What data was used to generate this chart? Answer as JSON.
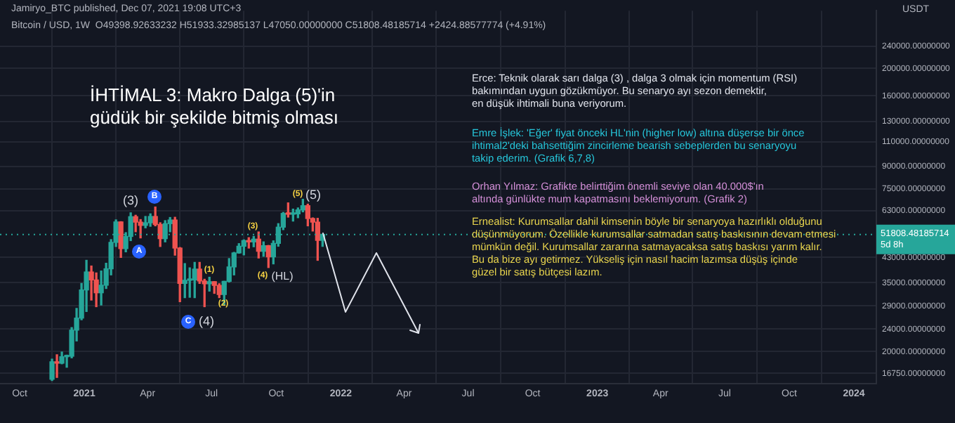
{
  "chart_data": {
    "type": "candlestick",
    "title": "İHTİMAL 3: Makro Dalga (5)'in\ngüdük bir şekilde bitmiş olması",
    "subtitle": "Bitcoin / USD, 1W  O49398.92633232 H51933.32985137 L47050.00000000 C51808.48185714 +2424.88577774 (+4.91%)",
    "ylabel": "USDT",
    "x": [
      "2020-11-16",
      "2020-11-23",
      "2020-11-30",
      "2020-12-07",
      "2020-12-14",
      "2020-12-21",
      "2020-12-28",
      "2021-01-04",
      "2021-01-11",
      "2021-01-18",
      "2021-01-25",
      "2021-02-01",
      "2021-02-08",
      "2021-02-15",
      "2021-02-22",
      "2021-03-01",
      "2021-03-08",
      "2021-03-15",
      "2021-03-22",
      "2021-03-29",
      "2021-04-05",
      "2021-04-12",
      "2021-04-19",
      "2021-04-26",
      "2021-05-03",
      "2021-05-10",
      "2021-05-17",
      "2021-05-24",
      "2021-05-31",
      "2021-06-07",
      "2021-06-14",
      "2021-06-21",
      "2021-06-28",
      "2021-07-05",
      "2021-07-12",
      "2021-07-19",
      "2021-07-26",
      "2021-08-02",
      "2021-08-09",
      "2021-08-16",
      "2021-08-23",
      "2021-08-30",
      "2021-09-06",
      "2021-09-13",
      "2021-09-20",
      "2021-09-27",
      "2021-10-04",
      "2021-10-11",
      "2021-10-18",
      "2021-10-25",
      "2021-11-01",
      "2021-11-08",
      "2021-11-15",
      "2021-11-22",
      "2021-11-29",
      "2021-12-06"
    ],
    "ohlc": [
      [
        15960,
        18800,
        15800,
        18400
      ],
      [
        18400,
        19480,
        16200,
        18190
      ],
      [
        18190,
        19920,
        18100,
        19170
      ],
      [
        19170,
        19420,
        17600,
        19250
      ],
      [
        19250,
        24300,
        19000,
        23800
      ],
      [
        23800,
        28400,
        21800,
        26250
      ],
      [
        26250,
        34800,
        25900,
        33000
      ],
      [
        33000,
        42000,
        27700,
        38200
      ],
      [
        38200,
        40100,
        30400,
        35800
      ],
      [
        35800,
        37900,
        28800,
        32250
      ],
      [
        32250,
        38500,
        29200,
        34300
      ],
      [
        34300,
        41000,
        33400,
        39200
      ],
      [
        39200,
        49700,
        37300,
        48600
      ],
      [
        48600,
        58350,
        47000,
        57400
      ],
      [
        57400,
        57500,
        43000,
        46200
      ],
      [
        46200,
        52600,
        45000,
        51000
      ],
      [
        51000,
        61800,
        49300,
        59900
      ],
      [
        59900,
        60600,
        53000,
        57300
      ],
      [
        57300,
        58500,
        50400,
        55800
      ],
      [
        55800,
        60000,
        54700,
        57000
      ],
      [
        57000,
        61300,
        55400,
        60000
      ],
      [
        60000,
        64800,
        55600,
        56200
      ],
      [
        56200,
        57000,
        47000,
        50100
      ],
      [
        50100,
        58000,
        48800,
        56600
      ],
      [
        56600,
        59500,
        53000,
        58300
      ],
      [
        58300,
        59600,
        43800,
        46400
      ],
      [
        46400,
        46600,
        30000,
        34800
      ],
      [
        34800,
        40900,
        31000,
        35700
      ],
      [
        35700,
        39500,
        31100,
        35800
      ],
      [
        35800,
        41300,
        31000,
        39100
      ],
      [
        39100,
        41300,
        34800,
        35500
      ],
      [
        35500,
        36000,
        28800,
        34700
      ],
      [
        34700,
        36600,
        32700,
        35300
      ],
      [
        35300,
        35300,
        32100,
        34250
      ],
      [
        34250,
        34700,
        31000,
        31800
      ],
      [
        31800,
        35400,
        29300,
        35400
      ],
      [
        35400,
        42600,
        35200,
        39800
      ],
      [
        39800,
        44800,
        37300,
        44600
      ],
      [
        44600,
        48100,
        44500,
        47100
      ],
      [
        47100,
        49600,
        43900,
        49300
      ],
      [
        49300,
        50500,
        46400,
        48800
      ],
      [
        48800,
        51000,
        46900,
        49900
      ],
      [
        49900,
        52900,
        42800,
        45200
      ],
      [
        45200,
        48800,
        43400,
        47300
      ],
      [
        47300,
        47400,
        39600,
        43200
      ],
      [
        43200,
        49200,
        40800,
        48200
      ],
      [
        48200,
        56600,
        47100,
        55000
      ],
      [
        55000,
        62000,
        53900,
        61500
      ],
      [
        61500,
        67000,
        59700,
        61100
      ],
      [
        61100,
        63700,
        57800,
        61300
      ],
      [
        61300,
        64300,
        59400,
        63300
      ],
      [
        63300,
        69000,
        62300,
        65500
      ],
      [
        65500,
        66300,
        55600,
        59000
      ],
      [
        59000,
        59300,
        53300,
        57300
      ],
      [
        57300,
        59100,
        42000,
        49400
      ],
      [
        49398.92633232,
        51933.32985137,
        47050,
        51808.48185714
      ]
    ],
    "colors": [
      "#26a69a",
      "#ef5350",
      "#26a69a",
      "#26a69a",
      "#26a69a",
      "#26a69a",
      "#26a69a",
      "#26a69a",
      "#ef5350",
      "#ef5350",
      "#26a69a",
      "#26a69a",
      "#26a69a",
      "#26a69a",
      "#ef5350",
      "#26a69a",
      "#26a69a",
      "#ef5350",
      "#ef5350",
      "#26a69a",
      "#26a69a",
      "#ef5350",
      "#ef5350",
      "#26a69a",
      "#26a69a",
      "#ef5350",
      "#ef5350",
      "#26a69a",
      "#26a69a",
      "#26a69a",
      "#ef5350",
      "#ef5350",
      "#26a69a",
      "#ef5350",
      "#ef5350",
      "#26a69a",
      "#26a69a",
      "#26a69a",
      "#26a69a",
      "#26a69a",
      "#ef5350",
      "#26a69a",
      "#ef5350",
      "#26a69a",
      "#ef5350",
      "#26a69a",
      "#26a69a",
      "#26a69a",
      "#ef5350",
      "#26a69a",
      "#26a69a",
      "#26a69a",
      "#ef5350",
      "#ef5350",
      "#ef5350",
      "#26a69a"
    ],
    "log": "y",
    "xlim": [
      "2020-09-03",
      "2024-02-02"
    ],
    "xticks": [
      {
        "value": "2020-10-01",
        "label": "Oct"
      },
      {
        "value": "2021-01-01",
        "label": "2021"
      },
      {
        "value": "2021-04-01",
        "label": "Apr"
      },
      {
        "value": "2021-07-01",
        "label": "Jul"
      },
      {
        "value": "2021-10-01",
        "label": "Oct"
      },
      {
        "value": "2022-01-01",
        "label": "2022"
      },
      {
        "value": "2022-04-01",
        "label": "Apr"
      },
      {
        "value": "2022-07-01",
        "label": "Jul"
      },
      {
        "value": "2022-10-01",
        "label": "Oct"
      },
      {
        "value": "2023-01-01",
        "label": "2023"
      },
      {
        "value": "2023-04-01",
        "label": "Apr"
      },
      {
        "value": "2023-07-01",
        "label": "Jul"
      },
      {
        "value": "2023-10-01",
        "label": "Oct"
      },
      {
        "value": "2024-01-01",
        "label": "2024"
      }
    ],
    "ylim": [
      15400,
      320000
    ],
    "yticks": [
      {
        "value": 16750,
        "label": "16750.00000000"
      },
      {
        "value": 20000,
        "label": "20000.00000000"
      },
      {
        "value": 24000,
        "label": "24000.00000000"
      },
      {
        "value": 29000,
        "label": "29000.00000000"
      },
      {
        "value": 35000,
        "label": "35000.00000000"
      },
      {
        "value": 43000,
        "label": "43000.00000000"
      },
      {
        "value": 63000,
        "label": "63000.00000000"
      },
      {
        "value": 75000,
        "label": "75000.00000000"
      },
      {
        "value": 90000,
        "label": "90000.00000000"
      },
      {
        "value": 110000,
        "label": "110000.00000000"
      },
      {
        "value": 130000,
        "label": "130000.00000000"
      },
      {
        "value": 160000,
        "label": "160000.00000000"
      },
      {
        "value": 200000,
        "label": "200000.00000000"
      },
      {
        "value": 240000,
        "label": "240000.00000000"
      }
    ],
    "ref_lines": [
      {
        "axis": "y",
        "value": 51808.48185714,
        "label": "51808.48185714\n5d 8h",
        "color": "#26a69a",
        "line_style": "dotted"
      }
    ],
    "grid": true,
    "annotations": [
      "Jamiryo_BTC published, Dec 07, 2021 19:08 UTC+3",
      "Erce: Teknik olarak sarı dalga (3) , dalga 3 olmak için momentum (RSI)\nbakımından uygun gözükmüyor. Bu senaryo ayı sezon demektir,\nen düşük ihtimali buna veriyorum.",
      "Emre İşlek: 'Eğer' fiyat önceki HL'nin (higher low) altına düşerse bir önce\nihtimal2'deki bahsettiğim zincirleme bearish sebeplerden bu senaryoyu\ntakip ederim. (Grafik 6,7,8)",
      "Orhan Yılmaz: Grafikte belirttiğim önemli seviye olan 40.000$'ın\naltında günlükte mum kapatmasını beklemiyorum. (Grafik 2)",
      "Ernealist: Kurumsallar dahil kimsenin böyle bir senaryoya hazırlıklı olduğunu\ndüşünmüyorum. Özellikle kurumsallar satmadan satış baskısının devam etmesi\nmümkün değil. Kurumsallar zararına satmayacaksa satış baskısı yarım kalır.\nBu da bize ayı getirmez. Yükseliş için nasıl hacim lazımsa düşüş içinde\ngüzel bir satış bütçesi lazım.",
      "(3)",
      "B",
      "A",
      "C",
      "(4)",
      "(1)",
      "(2)",
      "(3)",
      "(4)",
      "(HL)",
      "(5)",
      "(5)"
    ]
  }
}
